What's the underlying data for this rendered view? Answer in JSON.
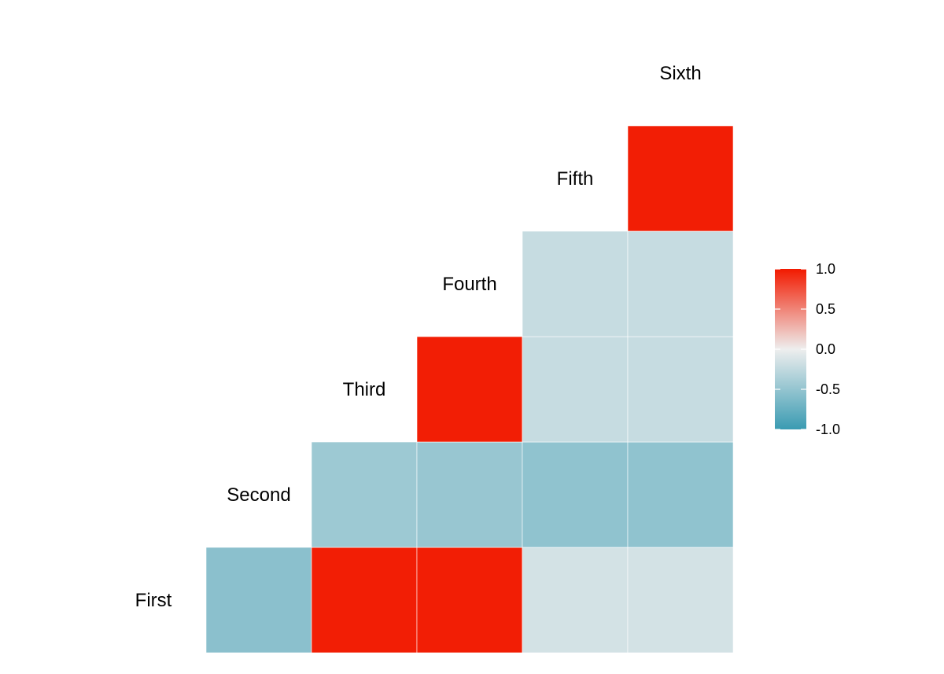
{
  "chart_data": {
    "type": "heatmap",
    "title": "",
    "xlabel": "",
    "ylabel": "",
    "variables": [
      "First",
      "Second",
      "Third",
      "Fourth",
      "Fifth",
      "Sixth"
    ],
    "x_categories": [
      "Second",
      "Third",
      "Fourth",
      "Fifth",
      "Sixth"
    ],
    "y_categories": [
      "First",
      "Second",
      "Third",
      "Fourth",
      "Fifth"
    ],
    "cells": [
      {
        "row": "First",
        "col": "Second",
        "value": -0.55
      },
      {
        "row": "First",
        "col": "Third",
        "value": 0.98
      },
      {
        "row": "First",
        "col": "Fourth",
        "value": 0.98
      },
      {
        "row": "First",
        "col": "Fifth",
        "value": -0.15
      },
      {
        "row": "First",
        "col": "Sixth",
        "value": -0.15
      },
      {
        "row": "Second",
        "col": "Third",
        "value": -0.45
      },
      {
        "row": "Second",
        "col": "Fourth",
        "value": -0.48
      },
      {
        "row": "Second",
        "col": "Fifth",
        "value": -0.52
      },
      {
        "row": "Second",
        "col": "Sixth",
        "value": -0.52
      },
      {
        "row": "Third",
        "col": "Fourth",
        "value": 0.98
      },
      {
        "row": "Third",
        "col": "Fifth",
        "value": -0.22
      },
      {
        "row": "Third",
        "col": "Sixth",
        "value": -0.22
      },
      {
        "row": "Fourth",
        "col": "Fifth",
        "value": -0.22
      },
      {
        "row": "Fourth",
        "col": "Sixth",
        "value": -0.22
      },
      {
        "row": "Fifth",
        "col": "Sixth",
        "value": 0.98
      }
    ],
    "colorscale": {
      "low": "#3A9BB2",
      "mid": "#EEEEEE",
      "high": "#F21A00",
      "range": [
        -1.0,
        1.0
      ]
    },
    "legend": {
      "position": "right",
      "ticks": [
        1.0,
        0.5,
        0.0,
        -0.5,
        -1.0
      ],
      "tick_labels": [
        "1.0",
        "0.5",
        "0.0",
        "-0.5",
        "-1.0"
      ]
    }
  }
}
